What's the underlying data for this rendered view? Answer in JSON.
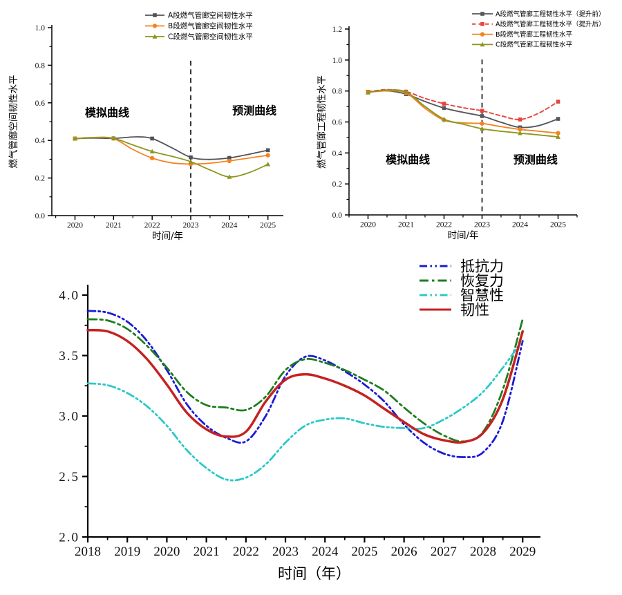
{
  "page": {
    "background": "#ffffff"
  },
  "chart_data": [
    {
      "id": "spatial-resilience",
      "type": "line",
      "title": "",
      "xlabel": "时间/年",
      "ylabel": "燃气管廊空间韧性水平",
      "xlim": [
        2019.4,
        2025.4
      ],
      "ylim": [
        0.0,
        1.0
      ],
      "xticks": [
        2020,
        2021,
        2022,
        2023,
        2024,
        2025
      ],
      "xtick_labels": [
        "2020",
        "2021",
        "2022",
        "2023",
        "2024",
        "2025"
      ],
      "yticks": [
        0.0,
        0.2,
        0.4,
        0.6,
        0.8,
        1.0
      ],
      "ytick_labels": [
        "0.0",
        "0.2",
        "0.4",
        "0.6",
        "0.8",
        "1.0"
      ],
      "grid": false,
      "legend_position": "top-right-inside",
      "divider": {
        "x": 2023,
        "top_frac": 0.176
      },
      "annotations": [
        {
          "text": "模拟曲线",
          "fx": 0.239,
          "fy": 0.452
        },
        {
          "text": "预测曲线",
          "fx": 0.875,
          "fy": 0.441
        }
      ],
      "series": [
        {
          "id": "segment-a-spatial",
          "name": "A段燃气管廊空间韧性水平",
          "color": "#50525a",
          "dash": "solid",
          "marker": "square",
          "width": 1.8,
          "points": [
            [
              2020,
              0.41
            ],
            [
              2020.5,
              0.413
            ],
            [
              2021,
              0.411
            ],
            [
              2021.6,
              0.419
            ],
            [
              2022,
              0.41
            ],
            [
              2022.5,
              0.362
            ],
            [
              2023,
              0.31
            ],
            [
              2023.45,
              0.299
            ],
            [
              2024,
              0.307
            ],
            [
              2024.5,
              0.326
            ],
            [
              2025,
              0.348
            ]
          ]
        },
        {
          "id": "segment-b-spatial",
          "name": "B段燃气管廊空间韧性水平",
          "color": "#f58220",
          "dash": "solid",
          "marker": "circle",
          "width": 1.8,
          "points": [
            [
              2020,
              0.41
            ],
            [
              2020.5,
              0.416
            ],
            [
              2021,
              0.41
            ],
            [
              2021.5,
              0.352
            ],
            [
              2022,
              0.306
            ],
            [
              2022.5,
              0.281
            ],
            [
              2023,
              0.274
            ],
            [
              2023.5,
              0.279
            ],
            [
              2024,
              0.291
            ],
            [
              2024.5,
              0.306
            ],
            [
              2025,
              0.321
            ]
          ]
        },
        {
          "id": "segment-c-spatial",
          "name": "C段燃气管廊空间韧性水平",
          "color": "#8c961f",
          "dash": "solid",
          "marker": "triangle",
          "width": 1.8,
          "points": [
            [
              2020,
              0.409
            ],
            [
              2020.5,
              0.415
            ],
            [
              2021,
              0.411
            ],
            [
              2021.5,
              0.376
            ],
            [
              2022,
              0.341
            ],
            [
              2022.5,
              0.316
            ],
            [
              2023,
              0.287
            ],
            [
              2023.5,
              0.243
            ],
            [
              2024,
              0.206
            ],
            [
              2024.5,
              0.228
            ],
            [
              2025,
              0.273
            ]
          ]
        }
      ]
    },
    {
      "id": "engineering-resilience",
      "type": "line",
      "title": "",
      "xlabel": "时间/年",
      "ylabel": "燃气管廊工程韧性水平",
      "xlim": [
        2019.5,
        2025.5
      ],
      "ylim": [
        0.0,
        1.2
      ],
      "xticks": [
        2020,
        2021,
        2022,
        2023,
        2024,
        2025
      ],
      "xtick_labels": [
        "2020",
        "2021",
        "2022",
        "2023",
        "2024",
        "2025"
      ],
      "yticks": [
        0.0,
        0.2,
        0.4,
        0.6,
        0.8,
        1.0,
        1.2
      ],
      "ytick_labels": [
        "0.0",
        "0.2",
        "0.4",
        "0.6",
        "0.8",
        "1.0",
        "1.2"
      ],
      "grid": false,
      "legend_position": "top-right-inside",
      "divider": {
        "x": 2023,
        "top_frac": 0.164
      },
      "annotations": [
        {
          "text": "模拟曲线",
          "fx": 0.258,
          "fy": 0.703
        },
        {
          "text": "预测曲线",
          "fx": 0.818,
          "fy": 0.703
        }
      ],
      "series": [
        {
          "id": "segment-a-engineering-pre",
          "name": "A段燃气管廊工程韧性水平（提升前）",
          "color": "#55565e",
          "dash": "solid",
          "marker": "square",
          "width": 1.9,
          "points": [
            [
              2020,
              0.793
            ],
            [
              2020.5,
              0.801
            ],
            [
              2021,
              0.78
            ],
            [
              2021.5,
              0.732
            ],
            [
              2022,
              0.69
            ],
            [
              2022.5,
              0.662
            ],
            [
              2023,
              0.638
            ],
            [
              2023.5,
              0.598
            ],
            [
              2024,
              0.565
            ],
            [
              2024.5,
              0.577
            ],
            [
              2025,
              0.62
            ]
          ]
        },
        {
          "id": "segment-a-engineering-post",
          "name": "A段燃气管廊工程韧性水平（提升后）",
          "color": "#e8433f",
          "dash": "dash",
          "marker": "square",
          "width": 1.9,
          "points": [
            [
              2020,
              0.795
            ],
            [
              2020.5,
              0.809
            ],
            [
              2021,
              0.796
            ],
            [
              2021.5,
              0.752
            ],
            [
              2022,
              0.718
            ],
            [
              2022.5,
              0.692
            ],
            [
              2023,
              0.672
            ],
            [
              2023.5,
              0.64
            ],
            [
              2024,
              0.616
            ],
            [
              2024.5,
              0.658
            ],
            [
              2025,
              0.731
            ]
          ]
        },
        {
          "id": "segment-b-engineering",
          "name": "B段燃气管廊工程韧性水平",
          "color": "#f58220",
          "dash": "solid",
          "marker": "circle",
          "width": 1.9,
          "points": [
            [
              2020,
              0.792
            ],
            [
              2020.5,
              0.801
            ],
            [
              2021,
              0.788
            ],
            [
              2021.5,
              0.688
            ],
            [
              2022,
              0.612
            ],
            [
              2022.5,
              0.594
            ],
            [
              2023,
              0.59
            ],
            [
              2023.5,
              0.57
            ],
            [
              2024,
              0.552
            ],
            [
              2024.5,
              0.54
            ],
            [
              2025,
              0.528
            ]
          ]
        },
        {
          "id": "segment-c-engineering",
          "name": "C段燃气管廊工程韧性水平",
          "color": "#8c961f",
          "dash": "solid",
          "marker": "triangle",
          "width": 1.9,
          "points": [
            [
              2020,
              0.79
            ],
            [
              2020.5,
              0.806
            ],
            [
              2021,
              0.794
            ],
            [
              2021.5,
              0.7
            ],
            [
              2022,
              0.618
            ],
            [
              2022.5,
              0.586
            ],
            [
              2023,
              0.556
            ],
            [
              2023.5,
              0.54
            ],
            [
              2024,
              0.528
            ],
            [
              2024.5,
              0.516
            ],
            [
              2025,
              0.504
            ]
          ]
        }
      ]
    },
    {
      "id": "overall-resilience",
      "type": "line",
      "title": "",
      "xlabel": "时间（年）",
      "ylabel": "",
      "xlim": [
        2018,
        2029.45
      ],
      "ylim": [
        2.0,
        4.0
      ],
      "xticks": [
        2018,
        2019,
        2020,
        2021,
        2022,
        2023,
        2024,
        2025,
        2026,
        2027,
        2028,
        2029
      ],
      "xtick_labels": [
        "2018",
        "2019",
        "2020",
        "2021",
        "2022",
        "2023",
        "2024",
        "2025",
        "2026",
        "2027",
        "2028",
        "2029"
      ],
      "yticks": [
        2.0,
        2.5,
        3.0,
        3.5,
        4.0
      ],
      "ytick_labels": [
        "2.0",
        "2.5",
        "3.0",
        "3.5",
        "4.0"
      ],
      "grid": false,
      "legend_position": "top-right-inside",
      "annotations": [],
      "series": [
        {
          "id": "resistance",
          "name": "抵抗力",
          "color": "#1a1ad6",
          "dash": "dashdotdot",
          "marker": "none",
          "width": 2.8,
          "points": [
            [
              2018,
              3.87
            ],
            [
              2018.5,
              3.855
            ],
            [
              2019,
              3.78
            ],
            [
              2019.5,
              3.62
            ],
            [
              2020,
              3.38
            ],
            [
              2020.5,
              3.1
            ],
            [
              2021,
              2.92
            ],
            [
              2021.5,
              2.82
            ],
            [
              2022,
              2.79
            ],
            [
              2022.5,
              3.0
            ],
            [
              2023,
              3.33
            ],
            [
              2023.5,
              3.49
            ],
            [
              2024,
              3.46
            ],
            [
              2024.5,
              3.37
            ],
            [
              2025,
              3.26
            ],
            [
              2025.5,
              3.12
            ],
            [
              2026,
              2.93
            ],
            [
              2026.5,
              2.78
            ],
            [
              2027,
              2.69
            ],
            [
              2027.5,
              2.66
            ],
            [
              2028,
              2.7
            ],
            [
              2028.5,
              2.96
            ],
            [
              2029,
              3.62
            ]
          ]
        },
        {
          "id": "recovery",
          "name": "恢复力",
          "color": "#1e7d1e",
          "dash": "dashdot",
          "marker": "none",
          "width": 2.8,
          "points": [
            [
              2018,
              3.8
            ],
            [
              2018.5,
              3.79
            ],
            [
              2019,
              3.72
            ],
            [
              2019.5,
              3.58
            ],
            [
              2020,
              3.4
            ],
            [
              2020.5,
              3.2
            ],
            [
              2021,
              3.09
            ],
            [
              2021.5,
              3.07
            ],
            [
              2022,
              3.05
            ],
            [
              2022.5,
              3.16
            ],
            [
              2023,
              3.38
            ],
            [
              2023.5,
              3.47
            ],
            [
              2024,
              3.44
            ],
            [
              2024.5,
              3.38
            ],
            [
              2025,
              3.3
            ],
            [
              2025.5,
              3.21
            ],
            [
              2026,
              3.07
            ],
            [
              2026.5,
              2.94
            ],
            [
              2027,
              2.84
            ],
            [
              2027.5,
              2.79
            ],
            [
              2028,
              2.87
            ],
            [
              2028.5,
              3.22
            ],
            [
              2029,
              3.8
            ]
          ]
        },
        {
          "id": "smartness",
          "name": "智慧性",
          "color": "#2cc8c8",
          "dash": "dashdotdot",
          "marker": "none",
          "width": 2.8,
          "points": [
            [
              2018,
              3.27
            ],
            [
              2018.5,
              3.255
            ],
            [
              2019,
              3.19
            ],
            [
              2019.5,
              3.08
            ],
            [
              2020,
              2.92
            ],
            [
              2020.5,
              2.72
            ],
            [
              2021,
              2.57
            ],
            [
              2021.5,
              2.475
            ],
            [
              2022,
              2.49
            ],
            [
              2022.5,
              2.6
            ],
            [
              2023,
              2.78
            ],
            [
              2023.5,
              2.92
            ],
            [
              2024,
              2.97
            ],
            [
              2024.5,
              2.98
            ],
            [
              2025,
              2.94
            ],
            [
              2025.5,
              2.91
            ],
            [
              2026,
              2.9
            ],
            [
              2026.5,
              2.9
            ],
            [
              2027,
              2.97
            ],
            [
              2027.5,
              3.07
            ],
            [
              2028,
              3.2
            ],
            [
              2028.5,
              3.4
            ],
            [
              2029,
              3.63
            ]
          ]
        },
        {
          "id": "resilience",
          "name": "韧性",
          "color": "#c42220",
          "dash": "solid",
          "marker": "none",
          "width": 3.5,
          "points": [
            [
              2018,
              3.71
            ],
            [
              2018.5,
              3.7
            ],
            [
              2019,
              3.62
            ],
            [
              2019.5,
              3.47
            ],
            [
              2020,
              3.26
            ],
            [
              2020.5,
              3.03
            ],
            [
              2021,
              2.89
            ],
            [
              2021.5,
              2.83
            ],
            [
              2022,
              2.87
            ],
            [
              2022.5,
              3.12
            ],
            [
              2023,
              3.3
            ],
            [
              2023.5,
              3.345
            ],
            [
              2024,
              3.31
            ],
            [
              2024.5,
              3.25
            ],
            [
              2025,
              3.17
            ],
            [
              2025.5,
              3.06
            ],
            [
              2026,
              2.95
            ],
            [
              2026.5,
              2.85
            ],
            [
              2027,
              2.8
            ],
            [
              2027.5,
              2.785
            ],
            [
              2028,
              2.86
            ],
            [
              2028.5,
              3.14
            ],
            [
              2029,
              3.7
            ]
          ]
        }
      ]
    }
  ]
}
